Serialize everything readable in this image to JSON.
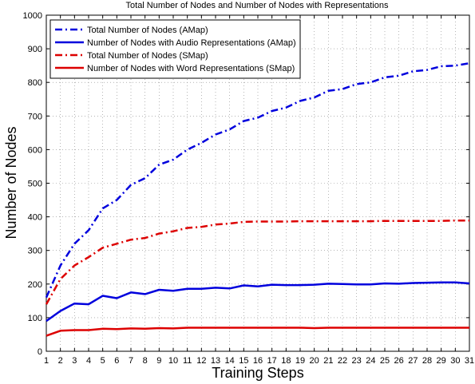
{
  "chart_data": {
    "type": "line",
    "title": "Total Number of Nodes and Number of Nodes with Representations",
    "xlabel": "Training Steps",
    "ylabel": "Number of Nodes",
    "xlim": [
      1,
      31
    ],
    "ylim": [
      0,
      1000
    ],
    "x": [
      1,
      2,
      3,
      4,
      5,
      6,
      7,
      8,
      9,
      10,
      11,
      12,
      13,
      14,
      15,
      16,
      17,
      18,
      19,
      20,
      21,
      22,
      23,
      24,
      25,
      26,
      27,
      28,
      29,
      30,
      31
    ],
    "xticks": [
      "1",
      "2",
      "3",
      "4",
      "5",
      "6",
      "7",
      "8",
      "9",
      "10",
      "11",
      "12",
      "13",
      "14",
      "15",
      "16",
      "17",
      "18",
      "19",
      "20",
      "21",
      "22",
      "23",
      "24",
      "25",
      "26",
      "27",
      "28",
      "29",
      "30",
      "31"
    ],
    "yticks": [
      "0",
      "100",
      "200",
      "300",
      "400",
      "500",
      "600",
      "700",
      "800",
      "900",
      "1000"
    ],
    "grid": true,
    "legend_position": "top-left",
    "series": [
      {
        "name": "Total Number of Nodes (AMap)",
        "color": "#0000dd",
        "style": "dashdot",
        "values": [
          160,
          255,
          320,
          360,
          425,
          450,
          495,
          515,
          555,
          570,
          600,
          620,
          645,
          660,
          685,
          695,
          715,
          725,
          745,
          755,
          775,
          780,
          795,
          800,
          815,
          820,
          833,
          837,
          848,
          850,
          857
        ]
      },
      {
        "name": "Number of Nodes with Audio Representations (AMap)",
        "color": "#0000dd",
        "style": "solid",
        "values": [
          90,
          120,
          142,
          140,
          165,
          158,
          175,
          170,
          183,
          180,
          186,
          186,
          189,
          187,
          196,
          193,
          198,
          197,
          197,
          198,
          201,
          200,
          199,
          199,
          202,
          201,
          203,
          204,
          205,
          205,
          202
        ]
      },
      {
        "name": "Total Number of Nodes (SMap)",
        "color": "#dd0000",
        "style": "dashdot",
        "values": [
          140,
          215,
          255,
          280,
          308,
          320,
          332,
          337,
          350,
          357,
          367,
          370,
          377,
          380,
          385,
          386,
          386,
          386,
          387,
          387,
          387,
          387,
          387,
          387,
          388,
          388,
          388,
          388,
          388,
          389,
          389
        ]
      },
      {
        "name": "Number of Nodes with Word Representations (SMap)",
        "color": "#dd0000",
        "style": "solid",
        "values": [
          46,
          61,
          63,
          63,
          67,
          66,
          68,
          67,
          69,
          68,
          70,
          70,
          70,
          70,
          70,
          70,
          70,
          70,
          70,
          69,
          70,
          70,
          70,
          70,
          70,
          70,
          70,
          70,
          70,
          70,
          70
        ]
      }
    ]
  }
}
